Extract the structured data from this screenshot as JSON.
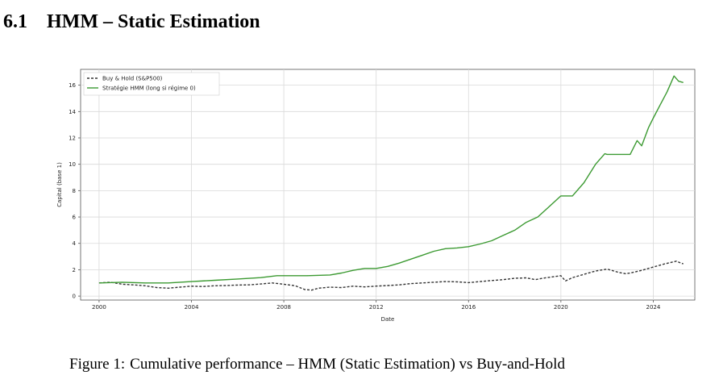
{
  "heading": {
    "number": "6.1",
    "title": "HMM – Static Estimation"
  },
  "caption": {
    "label": "Figure 1:",
    "text": "Cumulative performance – HMM (Static Estimation) vs Buy-and-Hold"
  },
  "chart_data": {
    "type": "line",
    "title": "",
    "xlabel": "Date",
    "ylabel": "Capital (base 1)",
    "xlim": [
      1999.2,
      2025.8
    ],
    "ylim": [
      -0.3,
      17.2
    ],
    "x_ticks": [
      2000,
      2004,
      2008,
      2012,
      2016,
      2020,
      2024
    ],
    "y_ticks": [
      0,
      2,
      4,
      6,
      8,
      10,
      12,
      14,
      16
    ],
    "grid": true,
    "legend_position": "top-left",
    "series": [
      {
        "name": "Buy & Hold (S&P500)",
        "color": "#333333",
        "style": "dashed",
        "points": [
          [
            2000.0,
            1.0
          ],
          [
            2000.5,
            1.05
          ],
          [
            2001.0,
            0.9
          ],
          [
            2001.5,
            0.85
          ],
          [
            2002.0,
            0.78
          ],
          [
            2002.5,
            0.65
          ],
          [
            2003.0,
            0.6
          ],
          [
            2003.5,
            0.68
          ],
          [
            2004.0,
            0.75
          ],
          [
            2004.5,
            0.73
          ],
          [
            2005.0,
            0.78
          ],
          [
            2005.5,
            0.8
          ],
          [
            2006.0,
            0.84
          ],
          [
            2006.5,
            0.85
          ],
          [
            2007.0,
            0.92
          ],
          [
            2007.5,
            1.0
          ],
          [
            2008.0,
            0.9
          ],
          [
            2008.5,
            0.78
          ],
          [
            2008.9,
            0.5
          ],
          [
            2009.2,
            0.45
          ],
          [
            2009.5,
            0.6
          ],
          [
            2010.0,
            0.68
          ],
          [
            2010.5,
            0.65
          ],
          [
            2011.0,
            0.75
          ],
          [
            2011.5,
            0.7
          ],
          [
            2012.0,
            0.76
          ],
          [
            2012.5,
            0.8
          ],
          [
            2013.0,
            0.85
          ],
          [
            2013.5,
            0.95
          ],
          [
            2014.0,
            1.0
          ],
          [
            2014.5,
            1.05
          ],
          [
            2015.0,
            1.1
          ],
          [
            2015.5,
            1.08
          ],
          [
            2016.0,
            1.02
          ],
          [
            2016.5,
            1.1
          ],
          [
            2017.0,
            1.18
          ],
          [
            2017.5,
            1.25
          ],
          [
            2018.0,
            1.35
          ],
          [
            2018.5,
            1.38
          ],
          [
            2018.9,
            1.25
          ],
          [
            2019.2,
            1.35
          ],
          [
            2019.6,
            1.45
          ],
          [
            2020.0,
            1.55
          ],
          [
            2020.2,
            1.15
          ],
          [
            2020.5,
            1.4
          ],
          [
            2021.0,
            1.65
          ],
          [
            2021.5,
            1.9
          ],
          [
            2022.0,
            2.05
          ],
          [
            2022.5,
            1.8
          ],
          [
            2022.8,
            1.7
          ],
          [
            2023.0,
            1.75
          ],
          [
            2023.5,
            1.95
          ],
          [
            2024.0,
            2.2
          ],
          [
            2024.5,
            2.45
          ],
          [
            2025.0,
            2.65
          ],
          [
            2025.2,
            2.5
          ],
          [
            2025.3,
            2.45
          ]
        ]
      },
      {
        "name": "Stratégie HMM (long si régime 0)",
        "color": "#3c9a32",
        "style": "solid",
        "points": [
          [
            2000.0,
            1.0
          ],
          [
            2001.0,
            1.05
          ],
          [
            2002.0,
            1.0
          ],
          [
            2003.0,
            1.0
          ],
          [
            2004.0,
            1.1
          ],
          [
            2005.0,
            1.2
          ],
          [
            2006.0,
            1.3
          ],
          [
            2007.0,
            1.4
          ],
          [
            2007.7,
            1.55
          ],
          [
            2008.0,
            1.55
          ],
          [
            2009.0,
            1.55
          ],
          [
            2010.0,
            1.6
          ],
          [
            2010.5,
            1.75
          ],
          [
            2011.0,
            1.95
          ],
          [
            2011.5,
            2.1
          ],
          [
            2012.0,
            2.1
          ],
          [
            2012.5,
            2.25
          ],
          [
            2013.0,
            2.5
          ],
          [
            2013.5,
            2.8
          ],
          [
            2014.0,
            3.1
          ],
          [
            2014.5,
            3.4
          ],
          [
            2015.0,
            3.6
          ],
          [
            2015.5,
            3.65
          ],
          [
            2016.0,
            3.75
          ],
          [
            2016.5,
            3.95
          ],
          [
            2017.0,
            4.2
          ],
          [
            2017.5,
            4.6
          ],
          [
            2018.0,
            5.0
          ],
          [
            2018.5,
            5.6
          ],
          [
            2019.0,
            6.0
          ],
          [
            2019.5,
            6.8
          ],
          [
            2020.0,
            7.6
          ],
          [
            2020.5,
            7.6
          ],
          [
            2021.0,
            8.6
          ],
          [
            2021.5,
            10.0
          ],
          [
            2021.9,
            10.8
          ],
          [
            2022.0,
            10.75
          ],
          [
            2023.0,
            10.75
          ],
          [
            2023.3,
            11.8
          ],
          [
            2023.5,
            11.4
          ],
          [
            2023.8,
            12.8
          ],
          [
            2024.0,
            13.5
          ],
          [
            2024.3,
            14.5
          ],
          [
            2024.6,
            15.5
          ],
          [
            2024.9,
            16.7
          ],
          [
            2025.1,
            16.3
          ],
          [
            2025.3,
            16.2
          ]
        ]
      }
    ]
  }
}
